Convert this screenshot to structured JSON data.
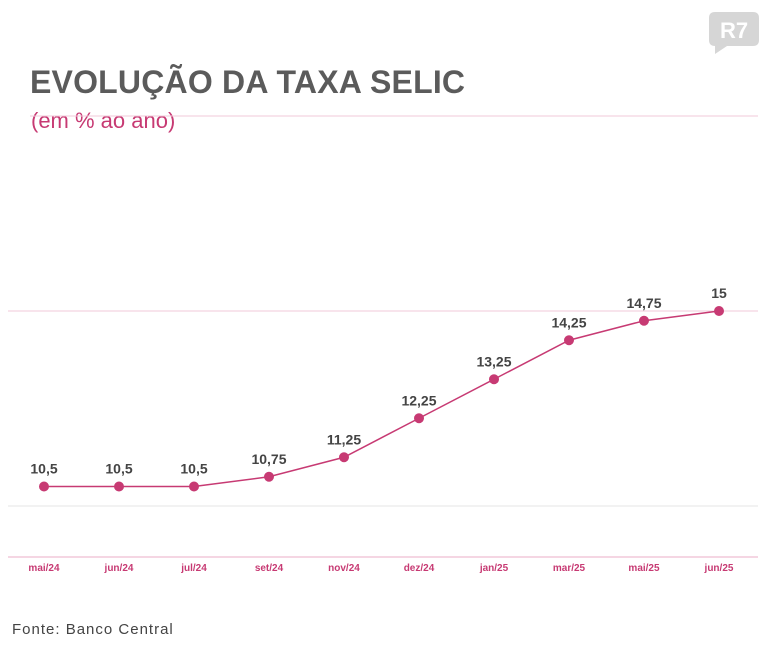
{
  "header": {
    "title": "EVOLUÇÃO DA TAXA SELIC",
    "subtitle": "(em % ao ano)"
  },
  "logo": {
    "text": "R7",
    "icon": "r7-logo-icon"
  },
  "footer": {
    "source": "Fonte: Banco Central"
  },
  "colors": {
    "accent": "#c73a73",
    "title": "#5b5b5b",
    "gridline": "#f2c9da",
    "gridline_gray": "#e4e4e4",
    "logo": "#d6d6d6"
  },
  "chart_data": {
    "type": "line",
    "title": "EVOLUÇÃO DA TAXA SELIC",
    "subtitle": "(em % ao ano)",
    "xlabel": "",
    "ylabel": "",
    "categories": [
      "mai/24",
      "jun/24",
      "jul/24",
      "set/24",
      "nov/24",
      "dez/24",
      "jan/25",
      "mar/25",
      "mai/25",
      "jun/25"
    ],
    "values": [
      10.5,
      10.5,
      10.5,
      10.75,
      11.25,
      12.25,
      13.25,
      14.25,
      14.75,
      15
    ],
    "data_labels": [
      "10,5",
      "10,5",
      "10,5",
      "10,75",
      "11,25",
      "12,25",
      "13,25",
      "14,25",
      "14,75",
      "15"
    ],
    "ylim": [
      9.5,
      15
    ],
    "gridlines": [
      10,
      15
    ],
    "legend": "none"
  }
}
